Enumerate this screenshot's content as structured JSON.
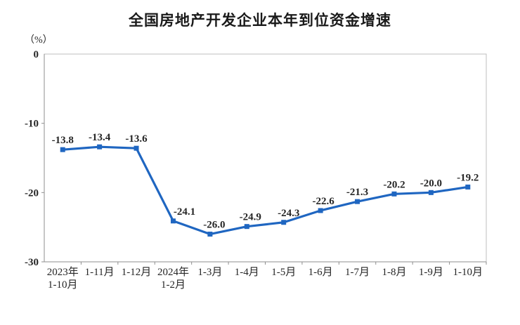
{
  "page": {
    "background_color": "#ffffff"
  },
  "chart_data": {
    "type": "line",
    "title": "全国房地产开发企业本年到位资金增速",
    "unit_label": "（%）",
    "categories": [
      [
        "2023年",
        "1-10月"
      ],
      [
        "1-11月"
      ],
      [
        "1-12月"
      ],
      [
        "2024年",
        "1-2月"
      ],
      [
        "1-3月"
      ],
      [
        "1-4月"
      ],
      [
        "1-5月"
      ],
      [
        "1-6月"
      ],
      [
        "1-7月"
      ],
      [
        "1-8月"
      ],
      [
        "1-9月"
      ],
      [
        "1-10月"
      ]
    ],
    "values": [
      -13.8,
      -13.4,
      -13.6,
      -24.1,
      -26.0,
      -24.9,
      -24.3,
      -22.6,
      -21.3,
      -20.2,
      -20.0,
      -19.2
    ],
    "data_labels": [
      "-13.8",
      "-13.4",
      "-13.6",
      "-24.1",
      "-26.0",
      "-24.9",
      "-24.3",
      "-22.6",
      "-21.3",
      "-20.2",
      "-20.0",
      "-19.2"
    ],
    "y_ticks": [
      0,
      -10,
      -20,
      -30
    ],
    "ylim": [
      -30,
      0
    ],
    "grid": false,
    "legend": "none",
    "marker": "square",
    "line_color": "#1f66c1",
    "label_color": "#262626",
    "box_color": "#bfbfbf",
    "axis_color": "#8f8f8f"
  }
}
